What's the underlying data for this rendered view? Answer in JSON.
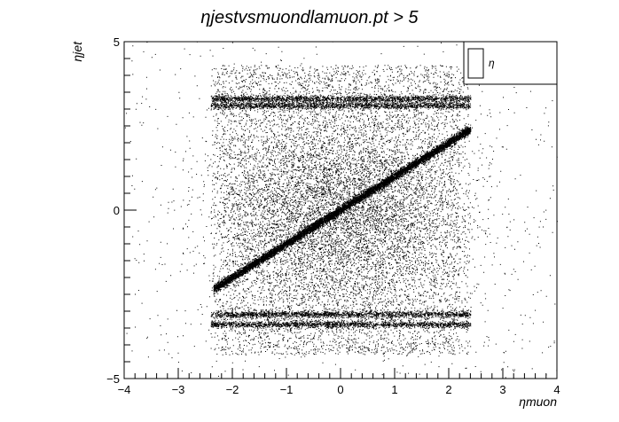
{
  "chart_data": {
    "type": "scatter",
    "title": "ηjestvsmuondlamuon.pt > 5",
    "xlabel": "ηmuon",
    "ylabel": "ηjet",
    "xlim": [
      -4,
      4
    ],
    "ylim": [
      -5,
      5
    ],
    "x_ticks": [
      -4,
      -3,
      -2,
      -1,
      0,
      1,
      2,
      3,
      4
    ],
    "x_tick_labels": [
      "−4",
      "−3",
      "−2",
      "−1",
      "0",
      "1",
      "2",
      "3",
      "4"
    ],
    "y_ticks": [
      -5,
      0,
      5
    ],
    "y_tick_labels": [
      "−5",
      "0",
      "5"
    ],
    "grid": false,
    "legend": {
      "position": "top-right",
      "entries": [
        "η"
      ]
    },
    "series": [
      {
        "marker_color": "#000000",
        "distribution": {
          "band_x_range": [
            -2.4,
            2.4
          ],
          "band_y_range": [
            -4.3,
            4.3
          ],
          "diagonal_line": {
            "x_range": [
              -2.35,
              2.4
            ],
            "slope": 1.0,
            "intercept": 0.0
          },
          "dense_horizontal_strips_y": [
            3.3,
            3.1,
            -3.1,
            -3.4
          ],
          "sparse_halo_x_range": [
            -4,
            4
          ],
          "sparse_halo_y_range": [
            -5,
            5
          ]
        }
      }
    ],
    "colors": {
      "background": "#ffffff",
      "frame": "#000000",
      "points": "#000000"
    }
  }
}
